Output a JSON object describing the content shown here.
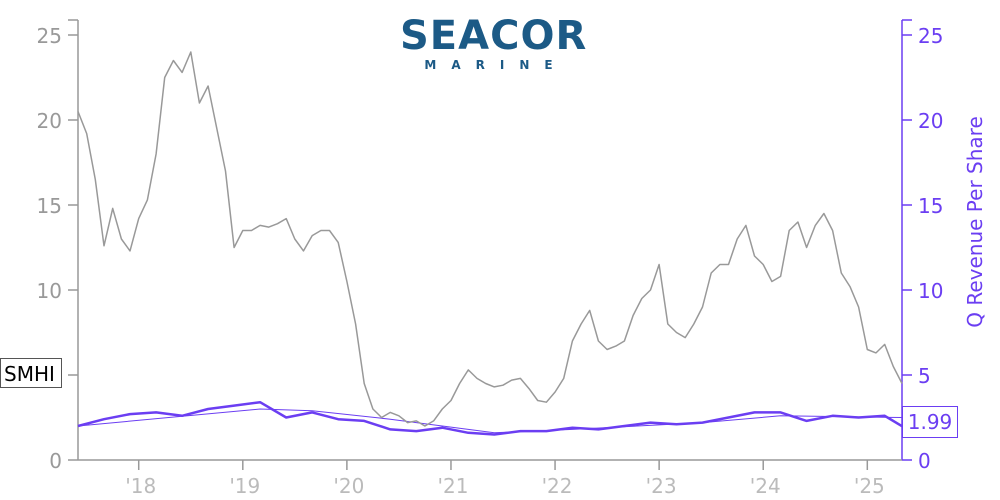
{
  "logo": {
    "name": "SEACOR",
    "sub": "MARINE"
  },
  "ticker": "SMHI",
  "last_value_label": "1.99",
  "colors": {
    "price": "#999999",
    "revenue": "#6b3ef2",
    "axis_left": "#999999",
    "axis_right": "#6b3ef2",
    "logo": "#1c5a86"
  },
  "chart_data": {
    "type": "line",
    "xlabel": "",
    "ylabel_left": "",
    "ylabel_right": "Q Revenue Per Share",
    "x_tick_labels": [
      "'18",
      "'19",
      "'20",
      "'21",
      "'22",
      "'23",
      "'24",
      "'25"
    ],
    "x_range": [
      "2017-06",
      "2025-05"
    ],
    "ylim_left": [
      0,
      26
    ],
    "ylim_right": [
      0,
      26
    ],
    "y_ticks_left": [
      0,
      5,
      10,
      15,
      20,
      25
    ],
    "y_ticks_right": [
      0,
      5,
      10,
      15,
      20,
      25
    ],
    "grid": false,
    "series": [
      {
        "name": "SMHI",
        "axis": "left",
        "points": [
          [
            "2017-06",
            20.5
          ],
          [
            "2017-07",
            19.2
          ],
          [
            "2017-08",
            16.5
          ],
          [
            "2017-09",
            12.6
          ],
          [
            "2017-10",
            14.8
          ],
          [
            "2017-11",
            13.0
          ],
          [
            "2017-12",
            12.3
          ],
          [
            "2018-01",
            14.2
          ],
          [
            "2018-02",
            15.3
          ],
          [
            "2018-03",
            18.0
          ],
          [
            "2018-04",
            22.5
          ],
          [
            "2018-05",
            23.5
          ],
          [
            "2018-06",
            22.8
          ],
          [
            "2018-07",
            24.0
          ],
          [
            "2018-08",
            21.0
          ],
          [
            "2018-09",
            22.0
          ],
          [
            "2018-10",
            19.5
          ],
          [
            "2018-11",
            17.0
          ],
          [
            "2018-12",
            12.5
          ],
          [
            "2019-01",
            13.5
          ],
          [
            "2019-02",
            13.5
          ],
          [
            "2019-03",
            13.8
          ],
          [
            "2019-04",
            13.7
          ],
          [
            "2019-05",
            13.9
          ],
          [
            "2019-06",
            14.2
          ],
          [
            "2019-07",
            13.0
          ],
          [
            "2019-08",
            12.3
          ],
          [
            "2019-09",
            13.2
          ],
          [
            "2019-10",
            13.5
          ],
          [
            "2019-11",
            13.5
          ],
          [
            "2019-12",
            12.8
          ],
          [
            "2020-01",
            10.5
          ],
          [
            "2020-02",
            8.0
          ],
          [
            "2020-03",
            4.5
          ],
          [
            "2020-04",
            3.0
          ],
          [
            "2020-05",
            2.5
          ],
          [
            "2020-06",
            2.8
          ],
          [
            "2020-07",
            2.6
          ],
          [
            "2020-08",
            2.2
          ],
          [
            "2020-09",
            2.3
          ],
          [
            "2020-10",
            2.0
          ],
          [
            "2020-11",
            2.3
          ],
          [
            "2020-12",
            3.0
          ],
          [
            "2021-01",
            3.5
          ],
          [
            "2021-02",
            4.5
          ],
          [
            "2021-03",
            5.3
          ],
          [
            "2021-04",
            4.8
          ],
          [
            "2021-05",
            4.5
          ],
          [
            "2021-06",
            4.3
          ],
          [
            "2021-07",
            4.4
          ],
          [
            "2021-08",
            4.7
          ],
          [
            "2021-09",
            4.8
          ],
          [
            "2021-10",
            4.2
          ],
          [
            "2021-11",
            3.5
          ],
          [
            "2021-12",
            3.4
          ],
          [
            "2022-01",
            4.0
          ],
          [
            "2022-02",
            4.8
          ],
          [
            "2022-03",
            7.0
          ],
          [
            "2022-04",
            8.0
          ],
          [
            "2022-05",
            8.8
          ],
          [
            "2022-06",
            7.0
          ],
          [
            "2022-07",
            6.5
          ],
          [
            "2022-08",
            6.7
          ],
          [
            "2022-09",
            7.0
          ],
          [
            "2022-10",
            8.5
          ],
          [
            "2022-11",
            9.5
          ],
          [
            "2022-12",
            10.0
          ],
          [
            "2023-01",
            11.5
          ],
          [
            "2023-02",
            8.0
          ],
          [
            "2023-03",
            7.5
          ],
          [
            "2023-04",
            7.2
          ],
          [
            "2023-05",
            8.0
          ],
          [
            "2023-06",
            9.0
          ],
          [
            "2023-07",
            11.0
          ],
          [
            "2023-08",
            11.5
          ],
          [
            "2023-09",
            11.5
          ],
          [
            "2023-10",
            13.0
          ],
          [
            "2023-11",
            13.8
          ],
          [
            "2023-12",
            12.0
          ],
          [
            "2024-01",
            11.5
          ],
          [
            "2024-02",
            10.5
          ],
          [
            "2024-03",
            10.8
          ],
          [
            "2024-04",
            13.5
          ],
          [
            "2024-05",
            14.0
          ],
          [
            "2024-06",
            12.5
          ],
          [
            "2024-07",
            13.8
          ],
          [
            "2024-08",
            14.5
          ],
          [
            "2024-09",
            13.5
          ],
          [
            "2024-10",
            11.0
          ],
          [
            "2024-11",
            10.2
          ],
          [
            "2024-12",
            9.0
          ],
          [
            "2025-01",
            6.5
          ],
          [
            "2025-02",
            6.3
          ],
          [
            "2025-03",
            6.8
          ],
          [
            "2025-04",
            5.5
          ],
          [
            "2025-05",
            4.5
          ]
        ]
      },
      {
        "name": "Q Revenue Per Share",
        "axis": "right",
        "points": [
          [
            "2017-06",
            2.0
          ],
          [
            "2017-09",
            2.4
          ],
          [
            "2017-12",
            2.7
          ],
          [
            "2018-03",
            2.8
          ],
          [
            "2018-06",
            2.6
          ],
          [
            "2018-09",
            3.0
          ],
          [
            "2018-12",
            3.2
          ],
          [
            "2019-03",
            3.4
          ],
          [
            "2019-06",
            2.5
          ],
          [
            "2019-09",
            2.8
          ],
          [
            "2019-12",
            2.4
          ],
          [
            "2020-03",
            2.3
          ],
          [
            "2020-06",
            1.8
          ],
          [
            "2020-09",
            1.7
          ],
          [
            "2020-12",
            1.9
          ],
          [
            "2021-03",
            1.6
          ],
          [
            "2021-06",
            1.5
          ],
          [
            "2021-09",
            1.7
          ],
          [
            "2021-12",
            1.7
          ],
          [
            "2022-03",
            1.9
          ],
          [
            "2022-06",
            1.8
          ],
          [
            "2022-09",
            2.0
          ],
          [
            "2022-12",
            2.2
          ],
          [
            "2023-03",
            2.1
          ],
          [
            "2023-06",
            2.2
          ],
          [
            "2023-09",
            2.5
          ],
          [
            "2023-12",
            2.8
          ],
          [
            "2024-03",
            2.8
          ],
          [
            "2024-06",
            2.3
          ],
          [
            "2024-09",
            2.6
          ],
          [
            "2024-12",
            2.5
          ],
          [
            "2025-03",
            2.6
          ],
          [
            "2025-05",
            1.99
          ]
        ]
      },
      {
        "name": "Q Revenue Per Share trend",
        "axis": "right",
        "points": [
          [
            "2017-06",
            2.0
          ],
          [
            "2019-03",
            3.0
          ],
          [
            "2019-09",
            2.9
          ],
          [
            "2020-06",
            2.4
          ],
          [
            "2021-03",
            1.8
          ],
          [
            "2021-06",
            1.6
          ],
          [
            "2022-03",
            1.8
          ],
          [
            "2023-06",
            2.2
          ],
          [
            "2024-03",
            2.6
          ],
          [
            "2025-05",
            2.5
          ]
        ]
      }
    ]
  }
}
